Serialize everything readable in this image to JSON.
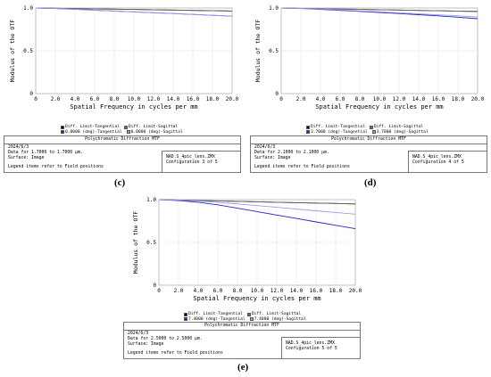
{
  "chart_data": [
    {
      "type": "line",
      "panel": "(c)",
      "ylabel": "Modulus of the OTF",
      "xlabel": "Spatial Frequency in cycles per mm",
      "xlim": [
        0,
        20
      ],
      "ylim": [
        0,
        1.0
      ],
      "xticks": [
        "0",
        "2.0",
        "4.0",
        "6.0",
        "8.0",
        "10.0",
        "12.0",
        "14.0",
        "16.0",
        "18.0",
        "20.0"
      ],
      "yticks": [
        "0",
        "0.5",
        "1.0"
      ],
      "grid": true,
      "x": [
        0,
        2,
        4,
        6,
        8,
        10,
        12,
        14,
        16,
        18,
        20
      ],
      "series": [
        {
          "name": "Diff. Limit-Tangential",
          "color": "#000000",
          "values": [
            1.0,
            0.997,
            0.993,
            0.99,
            0.986,
            0.983,
            0.979,
            0.976,
            0.972,
            0.969,
            0.965
          ]
        },
        {
          "name": "Diff. Limit-Sagittal",
          "color": "#6b6b6b",
          "values": [
            1.0,
            0.997,
            0.993,
            0.99,
            0.986,
            0.983,
            0.979,
            0.976,
            0.972,
            0.969,
            0.965
          ]
        },
        {
          "name": "0.0000 (deg)-Tangential",
          "color": "#2222cc",
          "values": [
            1.0,
            0.995,
            0.985,
            0.975,
            0.965,
            0.955,
            0.945,
            0.935,
            0.925,
            0.915,
            0.905
          ]
        },
        {
          "name": "0.0000 (deg)-Sagittal",
          "color": "#9a9ae6",
          "values": [
            1.0,
            0.995,
            0.985,
            0.975,
            0.965,
            0.955,
            0.945,
            0.935,
            0.925,
            0.915,
            0.905
          ]
        }
      ],
      "info": {
        "title": "Polychromatic Diffraction MTF",
        "date": "2024/6/3",
        "data_for": "Data for 1.7000 to 1.7000 μm.",
        "surface": "Surface: Image",
        "legend_note": "Legend items refer to Field positions",
        "file": "NAD.S_4pic_lens.ZMX",
        "config": "Configuration 3 of 5"
      }
    },
    {
      "type": "line",
      "panel": "(d)",
      "ylabel": "Modulus of the OTF",
      "xlabel": "Spatial Frequency in cycles per mm",
      "xlim": [
        0,
        20
      ],
      "ylim": [
        0,
        1.0
      ],
      "xticks": [
        "0",
        "2.0",
        "4.0",
        "6.0",
        "8.0",
        "10.0",
        "12.0",
        "14.0",
        "16.0",
        "18.0",
        "20.0"
      ],
      "yticks": [
        "0",
        "0.5",
        "1.0"
      ],
      "grid": true,
      "x": [
        0,
        2,
        4,
        6,
        8,
        10,
        12,
        14,
        16,
        18,
        20
      ],
      "series": [
        {
          "name": "Diff. Limit-Tangential",
          "color": "#000000",
          "values": [
            1.0,
            0.996,
            0.992,
            0.988,
            0.984,
            0.98,
            0.976,
            0.972,
            0.968,
            0.964,
            0.96
          ]
        },
        {
          "name": "Diff. Limit-Sagittal",
          "color": "#6b6b6b",
          "values": [
            1.0,
            0.996,
            0.992,
            0.988,
            0.984,
            0.98,
            0.976,
            0.972,
            0.968,
            0.964,
            0.96
          ]
        },
        {
          "name": "3.7000 (deg)-Tangential",
          "color": "#2222cc",
          "values": [
            1.0,
            0.994,
            0.984,
            0.972,
            0.96,
            0.948,
            0.935,
            0.922,
            0.908,
            0.893,
            0.875
          ]
        },
        {
          "name": "3.7000 (deg)-Sagittal",
          "color": "#9a9ae6",
          "values": [
            1.0,
            0.995,
            0.987,
            0.977,
            0.966,
            0.955,
            0.944,
            0.932,
            0.92,
            0.908,
            0.895
          ]
        }
      ],
      "info": {
        "title": "Polychromatic Diffraction MTF",
        "date": "2024/6/3",
        "data_for": "Data for 2.1000 to 2.1000 μm.",
        "surface": "Surface: Image",
        "legend_note": "Legend items refer to Field positions",
        "file": "NAD.S_4pic_lens.ZMX",
        "config": "Configuration 4 of 5"
      }
    },
    {
      "type": "line",
      "panel": "(e)",
      "ylabel": "Modulus of the OTF",
      "xlabel": "Spatial Frequency in cycles per mm",
      "xlim": [
        0,
        20
      ],
      "ylim": [
        0,
        1.0
      ],
      "xticks": [
        "0",
        "2.0",
        "4.0",
        "6.0",
        "8.0",
        "10.0",
        "12.0",
        "14.0",
        "16.0",
        "18.0",
        "20.0"
      ],
      "yticks": [
        "0",
        "0.5",
        "1.0"
      ],
      "grid": true,
      "x": [
        0,
        2,
        4,
        6,
        8,
        10,
        12,
        14,
        16,
        18,
        20
      ],
      "series": [
        {
          "name": "Diff. Limit-Tangential",
          "color": "#000000",
          "values": [
            1.0,
            0.995,
            0.99,
            0.985,
            0.98,
            0.975,
            0.97,
            0.965,
            0.96,
            0.955,
            0.95
          ]
        },
        {
          "name": "Diff. Limit-Sagittal",
          "color": "#6b6b6b",
          "values": [
            1.0,
            0.995,
            0.99,
            0.985,
            0.98,
            0.975,
            0.97,
            0.965,
            0.96,
            0.955,
            0.95
          ]
        },
        {
          "name": "7.4000 (deg)-Tangential",
          "color": "#2222cc",
          "values": [
            1.0,
            0.99,
            0.97,
            0.94,
            0.9,
            0.86,
            0.82,
            0.78,
            0.74,
            0.7,
            0.66
          ]
        },
        {
          "name": "7.4000 (deg)-Sagittal",
          "color": "#9a9ae6",
          "values": [
            1.0,
            0.994,
            0.983,
            0.968,
            0.95,
            0.93,
            0.91,
            0.89,
            0.87,
            0.85,
            0.83
          ]
        }
      ],
      "info": {
        "title": "Polychromatic Diffraction MTF",
        "date": "2024/6/3",
        "data_for": "Data for 2.5000 to 2.5000 μm.",
        "surface": "Surface: Image",
        "legend_note": "Legend items refer to Field positions",
        "file": "NAD.S_4pic_lens.ZMX",
        "config": "Configuration 5 of 5"
      }
    }
  ]
}
